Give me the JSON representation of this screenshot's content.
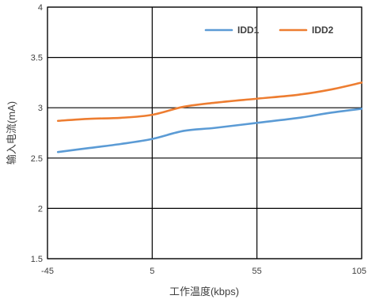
{
  "chart_data": {
    "type": "line",
    "xlabel": "工作温度(kbps)",
    "ylabel": "输入电流(mA)",
    "x_ticks": [
      "-45",
      "5",
      "55",
      "105"
    ],
    "x_tick_values": [
      -45,
      5,
      55,
      105
    ],
    "y_ticks": [
      "1.5",
      "2",
      "2.5",
      "3",
      "3.5",
      "4"
    ],
    "xlim": [
      -45,
      105
    ],
    "ylim": [
      1.5,
      4
    ],
    "grid": true,
    "legend_position": "top-right",
    "series": [
      {
        "name": "IDD1",
        "color": "#5b9bd5",
        "x": [
          -40,
          -25,
          -10,
          5,
          20,
          35,
          55,
          75,
          90,
          105
        ],
        "y": [
          2.56,
          2.6,
          2.64,
          2.69,
          2.77,
          2.8,
          2.85,
          2.9,
          2.95,
          2.99
        ]
      },
      {
        "name": "IDD2",
        "color": "#ed7d31",
        "x": [
          -40,
          -25,
          -10,
          5,
          20,
          35,
          55,
          75,
          90,
          105
        ],
        "y": [
          2.87,
          2.89,
          2.9,
          2.93,
          3.01,
          3.05,
          3.09,
          3.13,
          3.18,
          3.25
        ]
      }
    ]
  }
}
